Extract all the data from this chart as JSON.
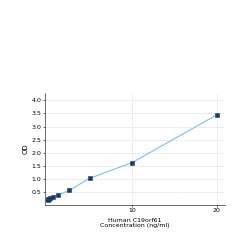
{
  "x": [
    0.0,
    0.064,
    0.16,
    0.32,
    0.64,
    1.28,
    2.56,
    5,
    10,
    20
  ],
  "y": [
    0.21,
    0.22,
    0.24,
    0.27,
    0.31,
    0.38,
    0.56,
    1.02,
    1.62,
    3.44
  ],
  "line_color": "#7fbfdf",
  "marker_color": "#1a3a6b",
  "marker_style": "s",
  "marker_size": 2.5,
  "line_width": 0.8,
  "xlabel_line1": "Human C19orf61",
  "xlabel_line2": "Concentration (ng/ml)",
  "ylabel": "OD",
  "xlim": [
    -0.3,
    21
  ],
  "ylim": [
    0,
    4.3
  ],
  "xticks": [
    10,
    20
  ],
  "yticks": [
    0.5,
    1.0,
    1.5,
    2.0,
    2.5,
    3.0,
    3.5,
    4.0
  ],
  "grid_color": "#d0d0d0",
  "background_color": "#ffffff",
  "xlabel_fontsize": 4.5,
  "ylabel_fontsize": 5.0,
  "tick_fontsize": 4.5
}
